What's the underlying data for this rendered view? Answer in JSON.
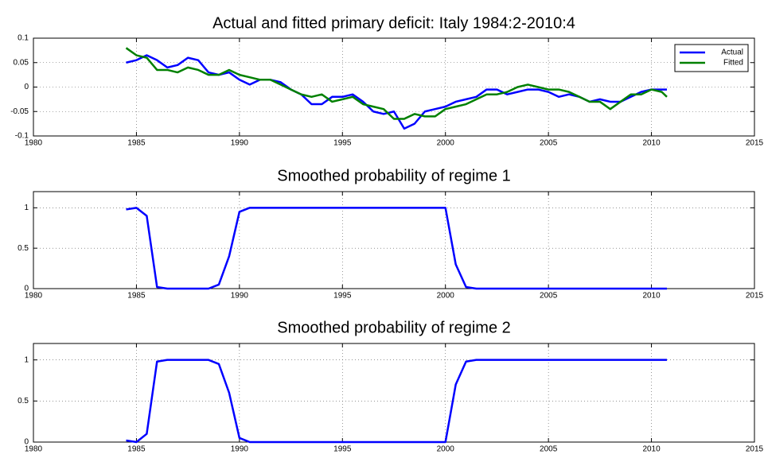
{
  "chart_data": [
    {
      "type": "line",
      "title": "Actual and fitted primary deficit: Italy 1984:2-2010:4",
      "x": [
        1984.5,
        1985,
        1985.5,
        1986,
        1986.5,
        1987,
        1987.5,
        1988,
        1988.5,
        1989,
        1989.5,
        1990,
        1990.5,
        1991,
        1991.5,
        1992,
        1992.5,
        1993,
        1993.5,
        1994,
        1994.5,
        1995,
        1995.5,
        1996,
        1996.5,
        1997,
        1997.5,
        1998,
        1998.5,
        1999,
        1999.5,
        2000,
        2000.5,
        2001,
        2001.5,
        2002,
        2002.5,
        2003,
        2003.5,
        2004,
        2004.5,
        2005,
        2005.5,
        2006,
        2006.5,
        2007,
        2007.5,
        2008,
        2008.5,
        2009,
        2009.5,
        2010,
        2010.5,
        2010.75
      ],
      "series": [
        {
          "name": "Actual",
          "color": "#0000ff",
          "values": [
            0.05,
            0.055,
            0.065,
            0.055,
            0.04,
            0.045,
            0.06,
            0.055,
            0.03,
            0.025,
            0.03,
            0.015,
            0.005,
            0.015,
            0.015,
            0.01,
            -0.005,
            -0.015,
            -0.035,
            -0.035,
            -0.02,
            -0.02,
            -0.015,
            -0.03,
            -0.05,
            -0.055,
            -0.05,
            -0.085,
            -0.075,
            -0.05,
            -0.045,
            -0.04,
            -0.03,
            -0.025,
            -0.02,
            -0.005,
            -0.005,
            -0.015,
            -0.01,
            -0.005,
            -0.005,
            -0.01,
            -0.02,
            -0.015,
            -0.02,
            -0.03,
            -0.025,
            -0.03,
            -0.03,
            -0.02,
            -0.01,
            -0.005,
            -0.005,
            -0.005
          ]
        },
        {
          "name": "Fitted",
          "color": "#008000",
          "values": [
            0.08,
            0.065,
            0.06,
            0.035,
            0.035,
            0.03,
            0.04,
            0.035,
            0.025,
            0.025,
            0.035,
            0.025,
            0.02,
            0.015,
            0.015,
            0.005,
            -0.005,
            -0.015,
            -0.02,
            -0.015,
            -0.03,
            -0.025,
            -0.02,
            -0.035,
            -0.04,
            -0.045,
            -0.065,
            -0.065,
            -0.055,
            -0.06,
            -0.06,
            -0.045,
            -0.04,
            -0.035,
            -0.025,
            -0.015,
            -0.015,
            -0.01,
            0,
            0.005,
            0,
            -0.005,
            -0.005,
            -0.01,
            -0.02,
            -0.03,
            -0.03,
            -0.045,
            -0.03,
            -0.015,
            -0.015,
            -0.005,
            -0.01,
            -0.02
          ]
        }
      ],
      "xlim": [
        1980,
        2015
      ],
      "xticks": [
        1980,
        1985,
        1990,
        1995,
        2000,
        2005,
        2010,
        2015
      ],
      "ylim": [
        -0.1,
        0.1
      ],
      "yticks": [
        -0.1,
        -0.05,
        0,
        0.05,
        0.1
      ],
      "grid": true,
      "legend": "upper right"
    },
    {
      "type": "line",
      "title": "Smoothed probability of regime 1",
      "x": [
        1984.5,
        1985,
        1985.5,
        1986,
        1986.5,
        1987,
        1987.5,
        1988,
        1988.5,
        1989,
        1989.5,
        1990,
        1990.5,
        1991,
        1991.5,
        1992,
        1992.5,
        1993,
        1993.5,
        1994,
        1994.5,
        1995,
        1995.5,
        1996,
        1996.5,
        1997,
        1997.5,
        1998,
        1998.5,
        1999,
        1999.5,
        2000,
        2000.5,
        2001,
        2001.5,
        2002,
        2002.5,
        2003,
        2003.5,
        2004,
        2004.5,
        2005,
        2005.5,
        2006,
        2006.5,
        2007,
        2007.5,
        2008,
        2008.5,
        2009,
        2009.5,
        2010,
        2010.5,
        2010.75
      ],
      "values": [
        0.98,
        1,
        0.9,
        0.02,
        0,
        0,
        0,
        0,
        0,
        0.05,
        0.4,
        0.95,
        1,
        1,
        1,
        1,
        1,
        1,
        1,
        1,
        1,
        1,
        1,
        1,
        1,
        1,
        1,
        1,
        1,
        1,
        1,
        1,
        0.3,
        0.02,
        0,
        0,
        0,
        0,
        0,
        0,
        0,
        0,
        0,
        0,
        0,
        0,
        0,
        0,
        0,
        0,
        0,
        0,
        0,
        0
      ],
      "color": "#0000ff",
      "xlim": [
        1980,
        2015
      ],
      "xticks": [
        1980,
        1985,
        1990,
        1995,
        2000,
        2005,
        2010,
        2015
      ],
      "ylim": [
        0,
        1.2
      ],
      "yticks": [
        0,
        0.5,
        1
      ],
      "grid": true
    },
    {
      "type": "line",
      "title": "Smoothed probability of regime 2",
      "x": [
        1984.5,
        1985,
        1985.5,
        1986,
        1986.5,
        1987,
        1987.5,
        1988,
        1988.5,
        1989,
        1989.5,
        1990,
        1990.5,
        1991,
        1991.5,
        1992,
        1992.5,
        1993,
        1993.5,
        1994,
        1994.5,
        1995,
        1995.5,
        1996,
        1996.5,
        1997,
        1997.5,
        1998,
        1998.5,
        1999,
        1999.5,
        2000,
        2000.5,
        2001,
        2001.5,
        2002,
        2002.5,
        2003,
        2003.5,
        2004,
        2004.5,
        2005,
        2005.5,
        2006,
        2006.5,
        2007,
        2007.5,
        2008,
        2008.5,
        2009,
        2009.5,
        2010,
        2010.5,
        2010.75
      ],
      "values": [
        0.02,
        0,
        0.1,
        0.98,
        1,
        1,
        1,
        1,
        1,
        0.95,
        0.6,
        0.05,
        0,
        0,
        0,
        0,
        0,
        0,
        0,
        0,
        0,
        0,
        0,
        0,
        0,
        0,
        0,
        0,
        0,
        0,
        0,
        0,
        0.7,
        0.98,
        1,
        1,
        1,
        1,
        1,
        1,
        1,
        1,
        1,
        1,
        1,
        1,
        1,
        1,
        1,
        1,
        1,
        1,
        1,
        1
      ],
      "color": "#0000ff",
      "xlim": [
        1980,
        2015
      ],
      "xticks": [
        1980,
        1985,
        1990,
        1995,
        2000,
        2005,
        2010,
        2015
      ],
      "ylim": [
        0,
        1.2
      ],
      "yticks": [
        0,
        0.5,
        1
      ],
      "grid": true
    }
  ]
}
